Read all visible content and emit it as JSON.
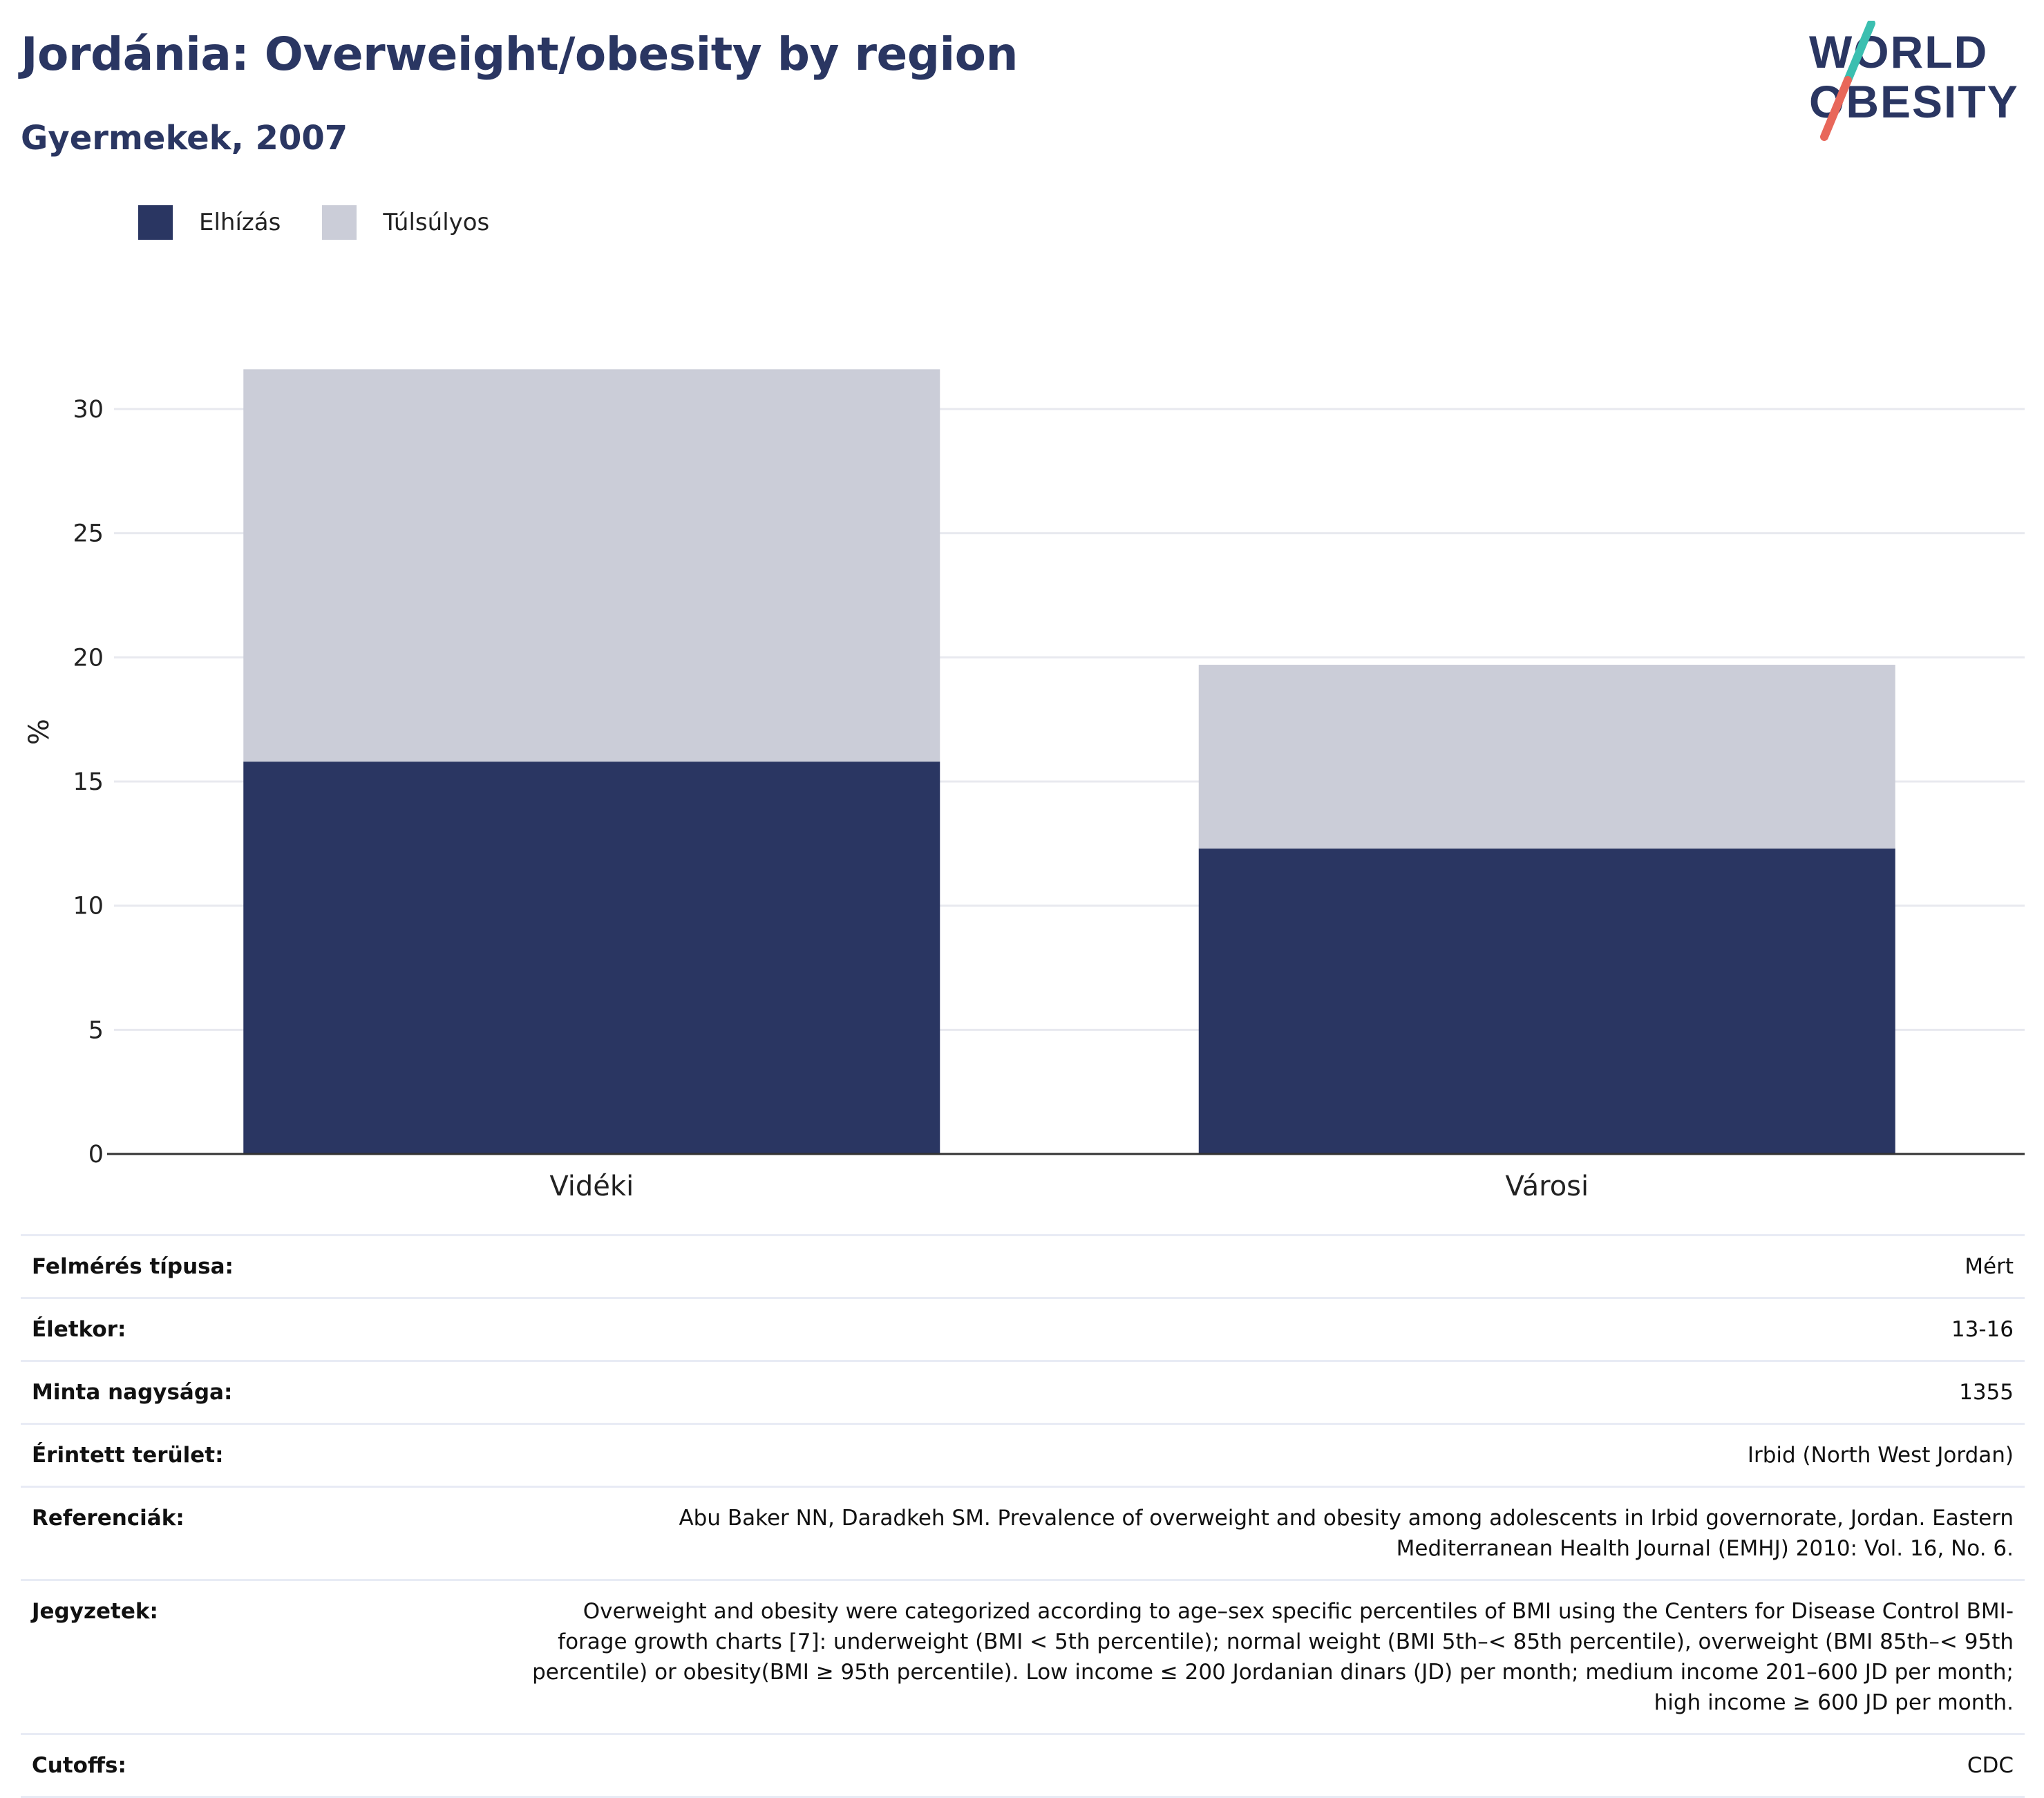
{
  "header": {
    "title": "Jordánia: Overweight/obesity by region",
    "subtitle": "Gyermekek, 2007"
  },
  "logo": {
    "line1": "WORLD",
    "line2": "OBESITY",
    "colors": {
      "text": "#2a3662",
      "slash_top": "#3bbfb0",
      "slash_bottom": "#e8675a"
    }
  },
  "colors": {
    "obese": "#2a3662",
    "overweight": "#cbcdd8",
    "grid": "#e8e9ef",
    "axis": "#333333",
    "title": "#2a3662"
  },
  "chart_data": {
    "type": "bar",
    "stacked": true,
    "categories": [
      "Vidéki",
      "Városi"
    ],
    "series": [
      {
        "name": "Elhízás",
        "values": [
          15.8,
          12.3
        ],
        "color": "#2a3662"
      },
      {
        "name": "Túlsúlyos",
        "values": [
          15.8,
          7.4
        ],
        "color": "#cbcdd8"
      }
    ],
    "ylabel": "%",
    "xlabel": "",
    "ylim": [
      0,
      32
    ],
    "yticks": [
      0,
      5,
      10,
      15,
      20,
      25,
      30
    ],
    "grid": true,
    "legend_position": "top-left"
  },
  "info": {
    "rows": [
      {
        "key": "Felmérés típusa:",
        "value": "Mért"
      },
      {
        "key": "Életkor:",
        "value": "13-16"
      },
      {
        "key": "Minta nagysága:",
        "value": "1355"
      },
      {
        "key": "Érintett terület:",
        "value": "Irbid (North West Jordan)"
      },
      {
        "key": "Referenciák:",
        "value": "Abu Baker NN, Daradkeh SM. Prevalence of overweight and obesity among adolescents in Irbid governorate, Jordan. Eastern Mediterranean Health Journal (EMHJ) 2010: Vol. 16, No. 6."
      },
      {
        "key": "Jegyzetek:",
        "value": "Overweight and obesity were categorized according to age–sex specific percentiles of BMI using the Centers for Disease Control BMI-forage growth charts [7]: underweight (BMI < 5th percentile); normal weight (BMI 5th–< 85th percentile), overweight (BMI 85th–< 95th percentile) or obesity(BMI ≥ 95th percentile). Low income ≤ 200 Jordanian dinars (JD) per month; medium income 201–600 JD per month; high income ≥ 600 JD per month."
      },
      {
        "key": "Cutoffs:",
        "value": "CDC"
      }
    ]
  }
}
